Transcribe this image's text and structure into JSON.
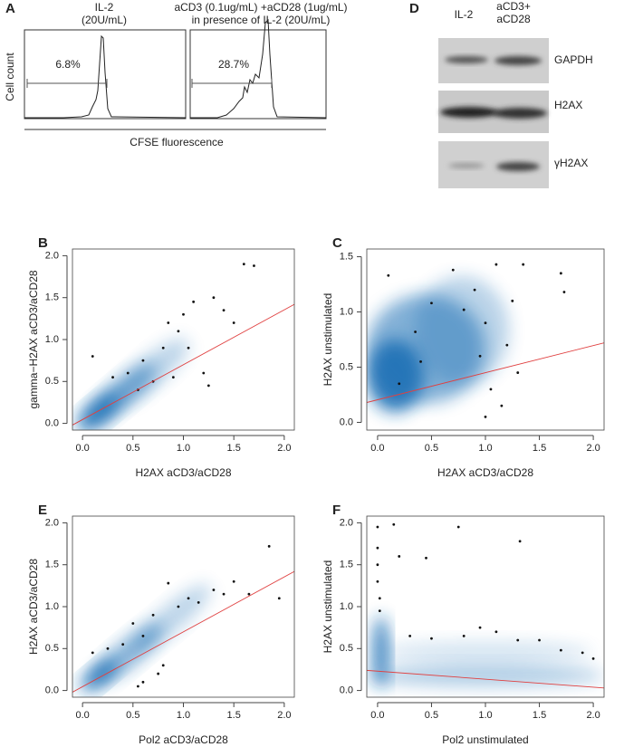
{
  "panel_a": {
    "label": "A",
    "left_title": [
      "IL-2",
      "(20U/mL)"
    ],
    "right_title": [
      "aCD3 (0.1ug/mL) +aCD28 (1ug/mL)",
      "in presence of IL-2 (20U/mL)"
    ],
    "left_gate": "6.8%",
    "right_gate": "28.7%",
    "ylabel": "Cell count",
    "xlabel": "CFSE fluorescence"
  },
  "panel_d": {
    "label": "D",
    "lanes": [
      "IL-2",
      "aCD3+\naCD28"
    ],
    "blots": [
      "GAPDH",
      "H2AX",
      "γH2AX"
    ]
  },
  "chart_data": [
    {
      "type": "scatter",
      "panel_label": "B",
      "xlabel": "H2AX aCD3/aCD28",
      "ylabel": "gamma−H2AX aCD3/aCD28",
      "xlim": [
        -0.1,
        2.1
      ],
      "ylim": [
        -0.08,
        2.08
      ],
      "xticks": [
        {
          "value": 0,
          "label": "0.0"
        },
        {
          "value": 0.5,
          "label": "0.5"
        },
        {
          "value": 1,
          "label": "1.0"
        },
        {
          "value": 1.5,
          "label": "1.5"
        },
        {
          "value": 2,
          "label": "2.0"
        }
      ],
      "yticks": [
        {
          "value": 0,
          "label": "0.0"
        },
        {
          "value": 0.5,
          "label": "0.5"
        },
        {
          "value": 1,
          "label": "1.0"
        },
        {
          "value": 1.5,
          "label": "1.5"
        },
        {
          "value": 2,
          "label": "2.0"
        }
      ],
      "series": [
        {
          "color": "#111111",
          "x": [
            0.1,
            0.3,
            0.45,
            0.6,
            0.7,
            0.8,
            0.85,
            0.95,
            1.0,
            1.05,
            1.1,
            1.2,
            1.25,
            1.3,
            1.4,
            1.5,
            1.6,
            1.7,
            0.55,
            0.9
          ],
          "values": [
            0.8,
            0.55,
            0.6,
            0.75,
            0.5,
            0.9,
            1.2,
            1.1,
            1.3,
            0.9,
            1.45,
            0.6,
            0.45,
            1.5,
            1.35,
            1.2,
            1.9,
            1.88,
            0.4,
            0.55
          ]
        }
      ],
      "fit": {
        "color": "#e04040",
        "x": [
          -0.1,
          2.1
        ],
        "values": [
          -0.02,
          1.42
        ]
      }
    },
    {
      "type": "scatter",
      "panel_label": "C",
      "xlabel": "H2AX aCD3/aCD28",
      "ylabel": "H2AX unstimulated",
      "xlim": [
        -0.1,
        2.1
      ],
      "ylim": [
        -0.07,
        1.57
      ],
      "xticks": [
        {
          "value": 0,
          "label": "0.0"
        },
        {
          "value": 0.5,
          "label": "0.5"
        },
        {
          "value": 1,
          "label": "1.0"
        },
        {
          "value": 1.5,
          "label": "1.5"
        },
        {
          "value": 2,
          "label": "2.0"
        }
      ],
      "yticks": [
        {
          "value": 0,
          "label": "0.0"
        },
        {
          "value": 0.5,
          "label": "0.5"
        },
        {
          "value": 1,
          "label": "1.0"
        },
        {
          "value": 1.5,
          "label": "1.5"
        }
      ],
      "series": [
        {
          "color": "#111111",
          "x": [
            0.1,
            0.35,
            0.5,
            0.7,
            0.8,
            0.9,
            0.95,
            1.0,
            1.05,
            1.1,
            1.15,
            1.2,
            1.25,
            1.3,
            1.35,
            1.7,
            1.73,
            1.0,
            0.4,
            0.2
          ],
          "values": [
            1.33,
            0.82,
            1.08,
            1.38,
            1.02,
            1.2,
            0.6,
            0.9,
            0.3,
            1.43,
            0.15,
            0.7,
            1.1,
            0.45,
            1.43,
            1.35,
            1.18,
            0.05,
            0.55,
            0.35
          ]
        }
      ],
      "fit": {
        "color": "#e04040",
        "x": [
          -0.1,
          2.1
        ],
        "values": [
          0.18,
          0.72
        ]
      }
    },
    {
      "type": "scatter",
      "panel_label": "E",
      "xlabel": "Pol2 aCD3/aCD28",
      "ylabel": "H2AX aCD3/aCD28",
      "xlim": [
        -0.1,
        2.1
      ],
      "ylim": [
        -0.08,
        2.08
      ],
      "xticks": [
        {
          "value": 0,
          "label": "0.0"
        },
        {
          "value": 0.5,
          "label": "0.5"
        },
        {
          "value": 1,
          "label": "1.0"
        },
        {
          "value": 1.5,
          "label": "1.5"
        },
        {
          "value": 2,
          "label": "2.0"
        }
      ],
      "yticks": [
        {
          "value": 0,
          "label": "0.0"
        },
        {
          "value": 0.5,
          "label": "0.5"
        },
        {
          "value": 1,
          "label": "1.0"
        },
        {
          "value": 1.5,
          "label": "1.5"
        },
        {
          "value": 2,
          "label": "2.0"
        }
      ],
      "series": [
        {
          "color": "#111111",
          "x": [
            0.1,
            0.25,
            0.4,
            0.5,
            0.6,
            0.7,
            0.85,
            0.95,
            1.05,
            1.15,
            1.3,
            1.4,
            1.5,
            1.65,
            1.85,
            1.95,
            0.55,
            0.75,
            0.8,
            0.6
          ],
          "values": [
            0.45,
            0.5,
            0.55,
            0.8,
            0.65,
            0.9,
            1.28,
            1.0,
            1.1,
            1.05,
            1.2,
            1.15,
            1.3,
            1.15,
            1.72,
            1.1,
            0.05,
            0.2,
            0.3,
            0.1
          ]
        }
      ],
      "fit": {
        "color": "#e04040",
        "x": [
          -0.1,
          2.1
        ],
        "values": [
          -0.02,
          1.42
        ]
      }
    },
    {
      "type": "scatter",
      "panel_label": "F",
      "xlabel": "Pol2 unstimulated",
      "ylabel": "H2AX unstimulated",
      "xlim": [
        -0.1,
        2.1
      ],
      "ylim": [
        -0.08,
        2.08
      ],
      "xticks": [
        {
          "value": 0,
          "label": "0.0"
        },
        {
          "value": 0.5,
          "label": "0.5"
        },
        {
          "value": 1,
          "label": "1.0"
        },
        {
          "value": 1.5,
          "label": "1.5"
        },
        {
          "value": 2,
          "label": "2.0"
        }
      ],
      "yticks": [
        {
          "value": 0,
          "label": "0.0"
        },
        {
          "value": 0.5,
          "label": "0.5"
        },
        {
          "value": 1,
          "label": "1.0"
        },
        {
          "value": 1.5,
          "label": "1.5"
        },
        {
          "value": 2,
          "label": "2.0"
        }
      ],
      "series": [
        {
          "color": "#111111",
          "x": [
            0,
            0,
            0,
            0,
            0.02,
            0.02,
            0.15,
            0.2,
            0.45,
            0.75,
            1.32,
            0.3,
            0.5,
            0.8,
            0.95,
            1.1,
            1.3,
            1.5,
            1.7,
            1.9,
            2.0
          ],
          "values": [
            1.95,
            1.7,
            1.5,
            1.3,
            1.1,
            0.95,
            1.98,
            1.6,
            1.58,
            1.95,
            1.78,
            0.65,
            0.62,
            0.65,
            0.75,
            0.7,
            0.6,
            0.6,
            0.48,
            0.45,
            0.38
          ]
        }
      ],
      "fit": {
        "color": "#e04040",
        "x": [
          -0.1,
          2.1
        ],
        "values": [
          0.24,
          0.03
        ]
      }
    }
  ]
}
